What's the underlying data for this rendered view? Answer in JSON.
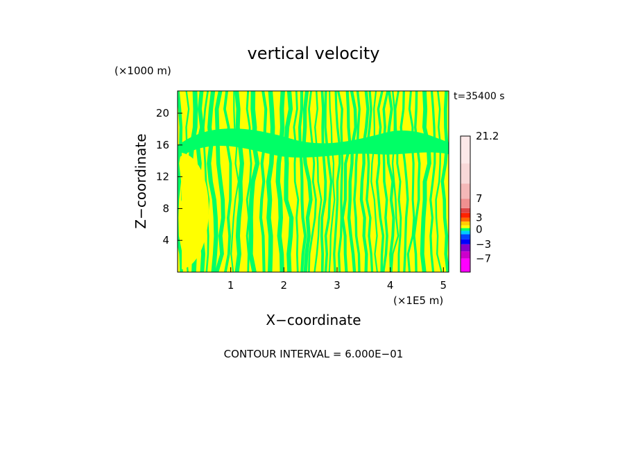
{
  "chart_data": {
    "type": "heatmap",
    "title": "vertical velocity",
    "xlabel": "X−coordinate",
    "ylabel": "Z−coordinate",
    "x_unit_label": "(×1E5 m)",
    "y_unit_label": "(×1000 m)",
    "time_label": "t=35400 s",
    "footer": "CONTOUR INTERVAL = 6.000E−01",
    "xlim": [
      0,
      5.1
    ],
    "ylim": [
      0,
      22.8
    ],
    "x_ticks": [
      {
        "value": 1,
        "label": "1"
      },
      {
        "value": 2,
        "label": "2"
      },
      {
        "value": 3,
        "label": "3"
      },
      {
        "value": 4,
        "label": "4"
      },
      {
        "value": 5,
        "label": "5"
      }
    ],
    "y_ticks": [
      {
        "value": 4,
        "label": "4"
      },
      {
        "value": 8,
        "label": "8"
      },
      {
        "value": 12,
        "label": "12"
      },
      {
        "value": 16,
        "label": "16"
      },
      {
        "value": 20,
        "label": "20"
      }
    ],
    "field_colors": {
      "positive": "#ffff00",
      "negative": "#00ff66"
    },
    "colorbar": {
      "levels": [
        {
          "value": -10,
          "color": "#ff00ff"
        },
        {
          "value": -7,
          "color": "#cc00cc"
        },
        {
          "value": -5,
          "color": "#8800cc"
        },
        {
          "value": -3,
          "color": "#0000ff"
        },
        {
          "value": -2,
          "color": "#0044ff"
        },
        {
          "value": -1,
          "color": "#00ccff"
        },
        {
          "value": 0,
          "color": "#00ff66"
        },
        {
          "value": 1,
          "color": "#ffff00"
        },
        {
          "value": 2,
          "color": "#ffcc00"
        },
        {
          "value": 3,
          "color": "#ff6600"
        },
        {
          "value": 4,
          "color": "#ff2200"
        },
        {
          "value": 5,
          "color": "#dd4444"
        },
        {
          "value": 7,
          "color": "#f09090"
        },
        {
          "value": 10,
          "color": "#f4b8b8"
        },
        {
          "value": 14,
          "color": "#f8d8d8"
        },
        {
          "value": 21.2,
          "color": "#fce8e8"
        }
      ],
      "tick_labels": [
        {
          "value": 21.2,
          "label": "21.2"
        },
        {
          "value": 7,
          "label": "7"
        },
        {
          "value": 3,
          "label": "3"
        },
        {
          "value": 0,
          "label": "0"
        },
        {
          "value": -3,
          "label": "−3"
        },
        {
          "value": -7,
          "label": "−7"
        }
      ]
    }
  }
}
